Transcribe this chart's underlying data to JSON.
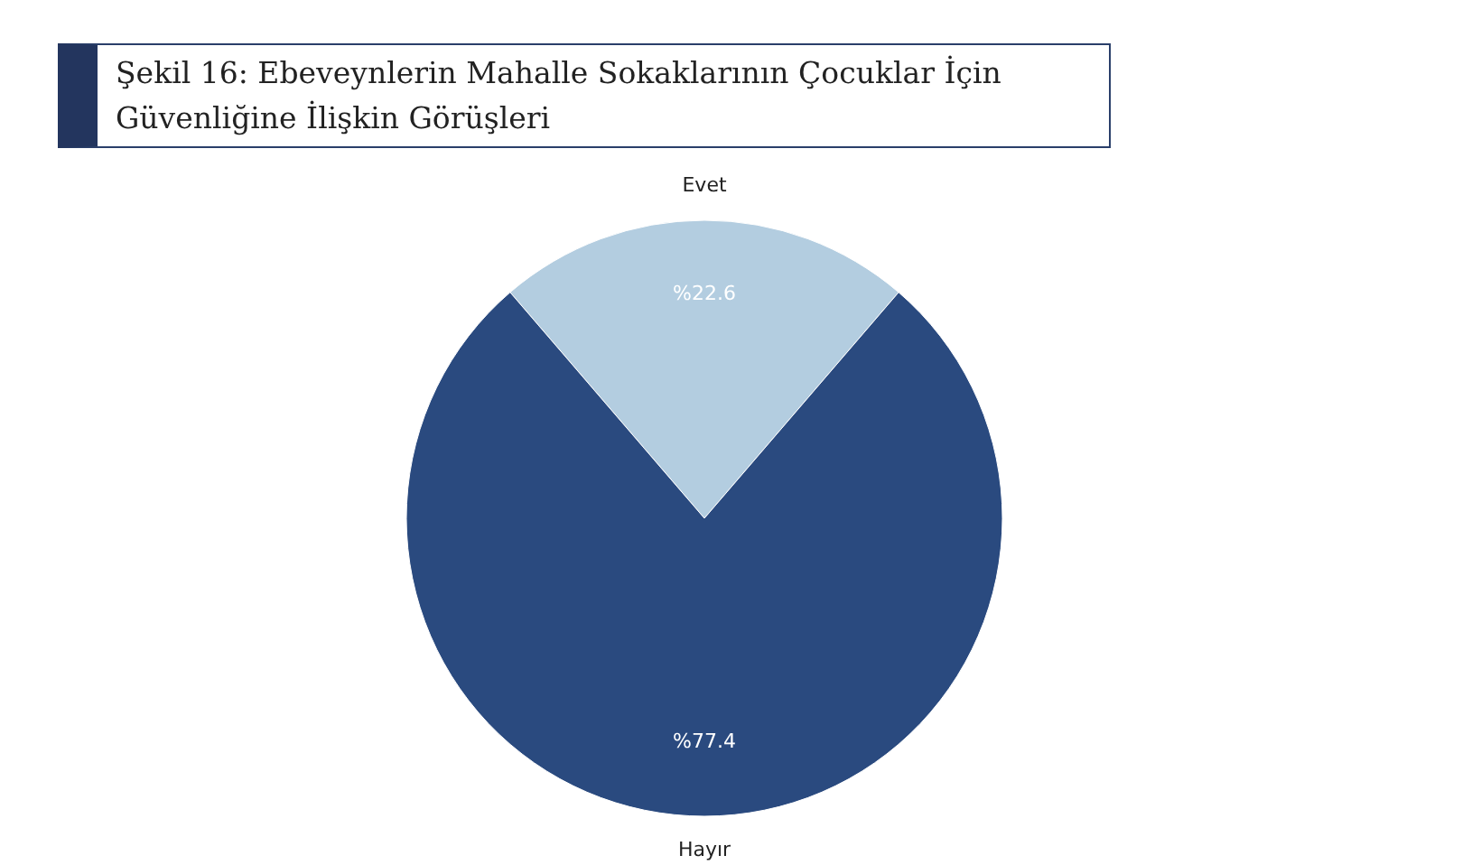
{
  "chart_data": {
    "type": "pie",
    "title": "Şekil 16: Ebeveynlerin Mahalle Sokaklarının Çocuklar İçin Güvenliğine İlişkin Görüşleri",
    "categories": [
      "Evet",
      "Hayır"
    ],
    "values": [
      22.6,
      77.4
    ],
    "colors": [
      "#b3cde0",
      "#2a4a7f"
    ],
    "value_labels": [
      "%22.6",
      "%77.4"
    ],
    "legend": false
  }
}
